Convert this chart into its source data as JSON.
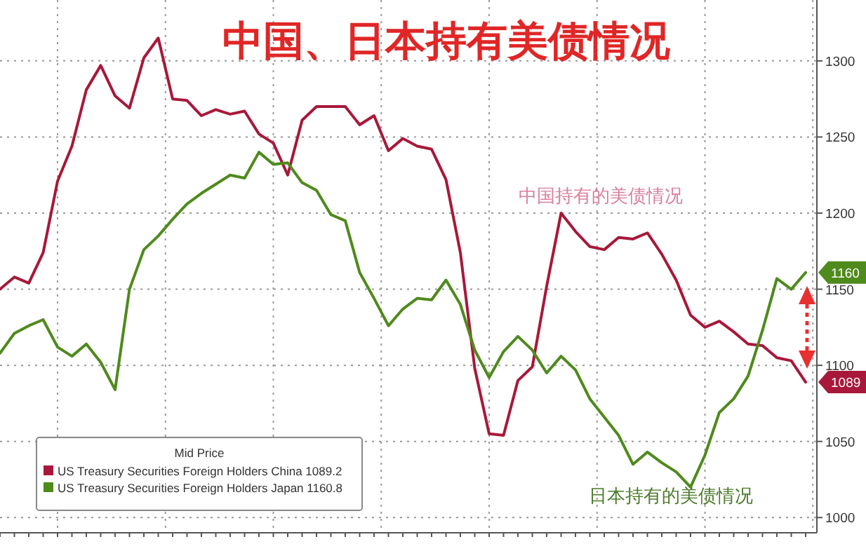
{
  "chart_data": {
    "type": "line",
    "title": "中国、日本持有美债情况",
    "legend_title": "Mid Price",
    "categories": [
      null,
      null,
      null,
      null,
      null,
      null,
      null,
      null,
      null,
      null,
      null,
      null,
      null,
      null,
      null,
      null,
      null,
      null,
      null,
      null,
      null,
      null,
      null,
      null,
      null,
      null,
      null,
      null,
      null,
      null,
      null,
      null,
      null,
      null,
      null,
      null,
      null,
      null,
      null,
      null,
      null,
      null,
      null,
      null,
      null,
      null,
      null,
      null,
      null,
      null,
      null,
      null,
      null,
      null,
      null,
      null,
      null
    ],
    "series": [
      {
        "name": "US Treasury Securities Foreign Holders China 1089.2",
        "color": "#a8183a",
        "values": [
          1150,
          1158,
          1154,
          1174,
          1221,
          1244,
          1281,
          1297,
          1277,
          1269,
          1302,
          1315,
          1275,
          1274,
          1264,
          1268,
          1265,
          1267,
          1252,
          1246,
          1225,
          1261,
          1270,
          1270,
          1270,
          1258,
          1264,
          1241,
          1249,
          1244,
          1242,
          1222,
          1174,
          1098,
          1055,
          1054,
          1090,
          1099,
          1152,
          1200,
          1188,
          1178,
          1176,
          1184,
          1183,
          1187,
          1173,
          1156,
          1133,
          1125,
          1129,
          1122,
          1114,
          1113,
          1105,
          1103,
          1089
        ]
      },
      {
        "name": "US Treasury Securities Foreign Holders Japan 1160.8",
        "color": "#4f8a1c",
        "values": [
          1108,
          1121,
          1126,
          1130,
          1112,
          1106,
          1114,
          1102,
          1084,
          1150,
          1176,
          1185,
          1196,
          1206,
          1213,
          1219,
          1225,
          1223,
          1240,
          1232,
          1233,
          1220,
          1215,
          1199,
          1195,
          1161,
          1144,
          1126,
          1137,
          1144,
          1143,
          1156,
          1140,
          1110,
          1092,
          1109,
          1119,
          1110,
          1095,
          1106,
          1097,
          1078,
          1066,
          1054,
          1035,
          1043,
          1036,
          1030,
          1020,
          1041,
          1069,
          1078,
          1093,
          1123,
          1157,
          1150,
          1161
        ]
      }
    ],
    "annotations": [
      "中国持有的美债情况",
      "日本持有的美债情况",
      "1160",
      "1089"
    ],
    "ylim": [
      990,
      1340
    ],
    "yticks": [
      1000,
      1050,
      1100,
      1150,
      1200,
      1250,
      1300
    ],
    "grid": true,
    "legend": "bottom left",
    "marker": "none",
    "line_style": "solid"
  }
}
